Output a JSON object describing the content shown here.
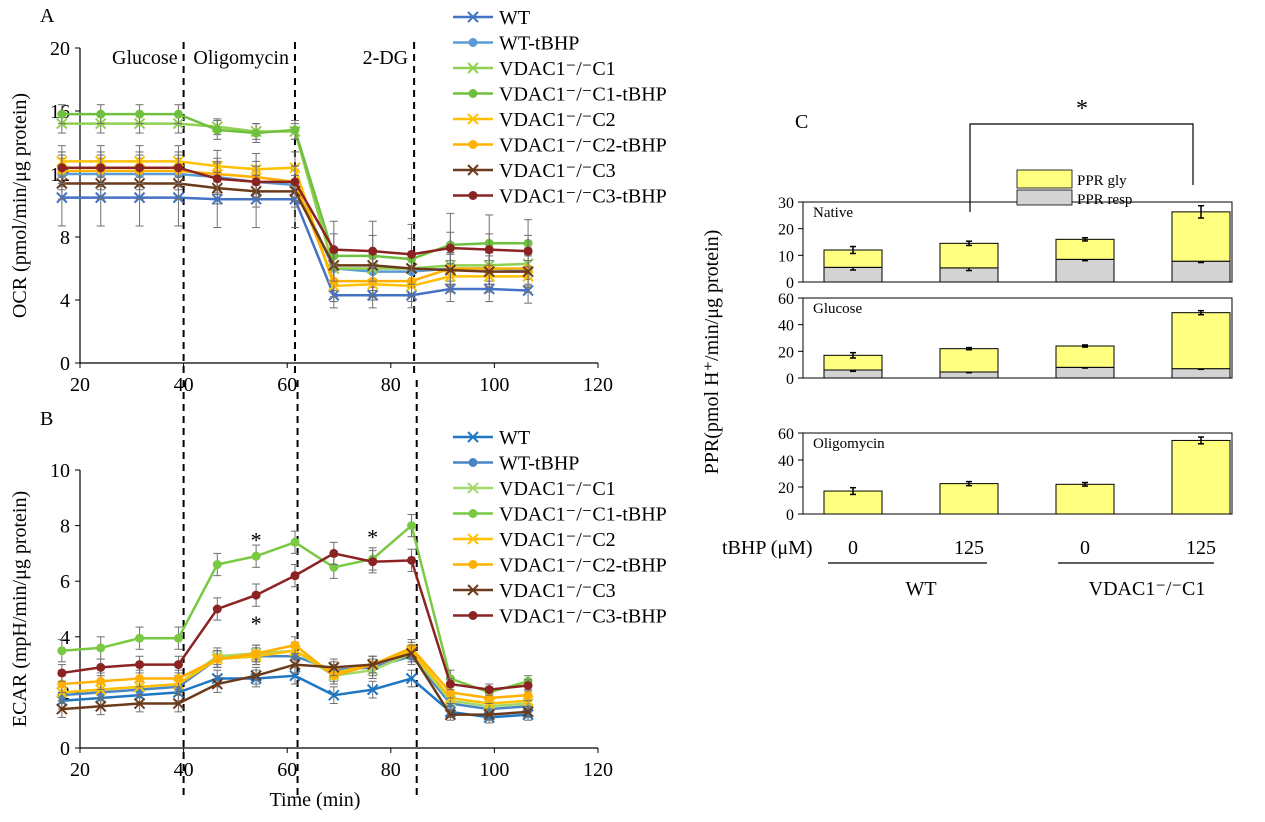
{
  "panel_letters": {
    "a": "A",
    "b": "B",
    "c": "C"
  },
  "line_panels": {
    "x_ticks": [
      "20",
      "40",
      "60",
      "80",
      "100",
      "120"
    ],
    "xlabel": "Time (min)",
    "markers": [
      "Glucose",
      "Oligomycin",
      "2-DG"
    ]
  },
  "bar_panel": {
    "ylabel": "PPR(pmol H⁺/min/μg protein)",
    "row_label": "tBHP (μM)",
    "x_labels": [
      "0",
      "125",
      "0",
      "125"
    ],
    "groups": [
      "WT",
      "VDAC1⁻/⁻C1"
    ],
    "legend": [
      "PPR gly",
      "PPR resp"
    ],
    "significance": "*"
  },
  "chart_data": [
    {
      "type": "line",
      "panel": "A",
      "title": "",
      "xlabel": "",
      "ylabel": "OCR (pmol/min/μg protein)",
      "xlim": [
        20,
        120
      ],
      "ylim": [
        0,
        20
      ],
      "yticks": [
        0,
        4,
        8,
        12,
        16,
        20
      ],
      "x": [
        16.5,
        24,
        31.5,
        39,
        46.5,
        54,
        61.5,
        69,
        76.5,
        84,
        91.5,
        99,
        106.5
      ],
      "vlines": [
        {
          "x": 40,
          "label": "Glucose"
        },
        {
          "x": 61.5,
          "label": "Oligomycin"
        },
        {
          "x": 84.5,
          "label": "2-DG"
        }
      ],
      "series": [
        {
          "name": "WT",
          "color": "#4472c4",
          "marker": "x",
          "values": [
            10.5,
            10.5,
            10.5,
            10.5,
            10.4,
            10.4,
            10.4,
            4.3,
            4.3,
            4.3,
            4.7,
            4.7,
            4.6
          ],
          "err": [
            1.8,
            1.8,
            1.8,
            1.8,
            1.8,
            1.8,
            1.8,
            0.8,
            0.8,
            0.8,
            0.8,
            0.8,
            0.8
          ]
        },
        {
          "name": "WT-tBHP",
          "color": "#5b9bd5",
          "marker": "o",
          "values": [
            12.0,
            12.0,
            12.0,
            12.0,
            11.8,
            11.5,
            11.3,
            6.0,
            5.8,
            5.8,
            6.0,
            6.0,
            5.9
          ],
          "err": [
            1.0,
            1.0,
            1.0,
            1.0,
            1.0,
            1.0,
            1.0,
            1.0,
            1.0,
            1.0,
            1.0,
            1.0,
            1.0
          ]
        },
        {
          "name": "VDAC1⁻/⁻C1",
          "color": "#8fd14f",
          "marker": "x",
          "values": [
            15.2,
            15.2,
            15.2,
            15.2,
            15.0,
            14.7,
            14.7,
            6.0,
            6.0,
            6.0,
            6.2,
            6.2,
            6.3
          ],
          "err": [
            0.6,
            0.6,
            0.6,
            0.6,
            0.5,
            0.5,
            0.5,
            1.0,
            1.0,
            1.0,
            1.0,
            1.0,
            1.0
          ]
        },
        {
          "name": "VDAC1⁻/⁻C1-tBHP",
          "color": "#70c040",
          "marker": "o",
          "values": [
            15.8,
            15.8,
            15.8,
            15.8,
            14.8,
            14.6,
            14.8,
            6.8,
            6.8,
            6.6,
            7.5,
            7.6,
            7.6
          ],
          "err": [
            0.6,
            0.6,
            0.6,
            0.6,
            0.6,
            0.6,
            0.6,
            2.2,
            2.2,
            2.2,
            2.0,
            1.8,
            1.5
          ]
        },
        {
          "name": "VDAC1⁻/⁻C2",
          "color": "#ffc000",
          "marker": "x",
          "values": [
            12.8,
            12.8,
            12.8,
            12.8,
            12.5,
            12.3,
            12.4,
            4.9,
            5.0,
            4.9,
            5.5,
            5.5,
            5.5
          ],
          "err": [
            1.0,
            1.0,
            1.0,
            1.0,
            1.0,
            1.0,
            1.0,
            1.0,
            1.0,
            1.0,
            1.0,
            1.0,
            1.0
          ]
        },
        {
          "name": "VDAC1⁻/⁻C2-tBHP",
          "color": "#ffb000",
          "marker": "o",
          "values": [
            12.2,
            12.2,
            12.2,
            12.2,
            12.0,
            11.8,
            11.5,
            5.2,
            5.2,
            5.2,
            6.0,
            6.0,
            6.0
          ],
          "err": [
            1.0,
            1.0,
            1.0,
            1.0,
            1.0,
            1.0,
            1.0,
            1.0,
            1.0,
            1.0,
            1.0,
            1.0,
            1.0
          ]
        },
        {
          "name": "VDAC1⁻/⁻C3",
          "color": "#6b3a1a",
          "marker": "x",
          "values": [
            11.4,
            11.4,
            11.4,
            11.4,
            11.1,
            10.9,
            10.9,
            6.2,
            6.2,
            6.0,
            5.9,
            5.8,
            5.8
          ],
          "err": [
            1.0,
            1.0,
            1.0,
            1.0,
            1.0,
            1.0,
            1.0,
            1.0,
            1.0,
            1.0,
            1.0,
            1.0,
            1.0
          ]
        },
        {
          "name": "VDAC1⁻/⁻C3-tBHP",
          "color": "#8b2323",
          "marker": "o",
          "values": [
            12.4,
            12.4,
            12.4,
            12.4,
            11.7,
            11.5,
            11.5,
            7.2,
            7.1,
            6.9,
            7.3,
            7.2,
            7.1
          ],
          "err": [
            1.0,
            1.0,
            1.0,
            1.0,
            1.0,
            1.0,
            1.0,
            1.0,
            1.0,
            1.0,
            1.0,
            1.0,
            1.0
          ]
        }
      ]
    },
    {
      "type": "line",
      "panel": "B",
      "title": "",
      "xlabel": "Time (min)",
      "ylabel": "ECAR (mpH/min/μg protein)",
      "xlim": [
        20,
        120
      ],
      "ylim": [
        0,
        10
      ],
      "yticks": [
        0,
        2,
        4,
        6,
        8,
        10
      ],
      "x": [
        16.5,
        24,
        31.5,
        39,
        46.5,
        54,
        61.5,
        69,
        76.5,
        84,
        91.5,
        99,
        106.5
      ],
      "vlines": [
        {
          "x": 40
        },
        {
          "x": 62
        },
        {
          "x": 85
        }
      ],
      "annotations": [
        {
          "text": "*",
          "x": 54,
          "y": 7.5
        },
        {
          "text": "*",
          "x": 54,
          "y": 4.5
        },
        {
          "text": "*",
          "x": 76.5,
          "y": 7.6
        }
      ],
      "series": [
        {
          "name": "WT",
          "color": "#1f77c4",
          "marker": "x",
          "values": [
            1.7,
            1.8,
            1.9,
            2.0,
            2.5,
            2.5,
            2.6,
            1.9,
            2.1,
            2.5,
            1.3,
            1.1,
            1.2
          ],
          "err": [
            0.3,
            0.3,
            0.3,
            0.3,
            0.3,
            0.3,
            0.3,
            0.3,
            0.3,
            0.3,
            0.2,
            0.2,
            0.2
          ]
        },
        {
          "name": "WT-tBHP",
          "color": "#4a86c6",
          "marker": "o",
          "values": [
            1.9,
            2.0,
            2.1,
            2.2,
            3.2,
            3.3,
            3.3,
            2.8,
            2.9,
            3.3,
            1.6,
            1.4,
            1.5
          ],
          "err": [
            0.3,
            0.3,
            0.3,
            0.3,
            0.3,
            0.3,
            0.3,
            0.3,
            0.3,
            0.3,
            0.2,
            0.2,
            0.2
          ]
        },
        {
          "name": "VDAC1⁻/⁻C1",
          "color": "#a3d86a",
          "marker": "x",
          "values": [
            2.0,
            2.1,
            2.2,
            2.3,
            3.3,
            3.4,
            3.5,
            2.6,
            2.8,
            3.4,
            1.7,
            1.5,
            1.6
          ],
          "err": [
            0.3,
            0.3,
            0.3,
            0.3,
            0.3,
            0.3,
            0.3,
            0.3,
            0.3,
            0.3,
            0.2,
            0.2,
            0.2
          ]
        },
        {
          "name": "VDAC1⁻/⁻C1-tBHP",
          "color": "#7ac943",
          "marker": "o",
          "values": [
            3.5,
            3.6,
            3.95,
            3.95,
            6.6,
            6.9,
            7.4,
            6.5,
            6.8,
            8.0,
            2.5,
            2.0,
            2.4
          ],
          "err": [
            0.4,
            0.4,
            0.4,
            0.4,
            0.4,
            0.4,
            0.4,
            0.4,
            0.4,
            0.4,
            0.3,
            0.2,
            0.2
          ]
        },
        {
          "name": "VDAC1⁻/⁻C2",
          "color": "#ffc000",
          "marker": "x",
          "values": [
            2.0,
            2.1,
            2.2,
            2.3,
            3.2,
            3.3,
            3.5,
            2.7,
            3.0,
            3.5,
            1.8,
            1.6,
            1.7
          ],
          "err": [
            0.3,
            0.3,
            0.3,
            0.3,
            0.3,
            0.3,
            0.3,
            0.3,
            0.3,
            0.3,
            0.2,
            0.2,
            0.2
          ]
        },
        {
          "name": "VDAC1⁻/⁻C2-tBHP",
          "color": "#ffb000",
          "marker": "o",
          "values": [
            2.3,
            2.4,
            2.5,
            2.5,
            3.2,
            3.4,
            3.7,
            2.6,
            3.0,
            3.6,
            2.0,
            1.8,
            1.9
          ],
          "err": [
            0.3,
            0.3,
            0.3,
            0.3,
            0.3,
            0.3,
            0.3,
            0.3,
            0.3,
            0.3,
            0.2,
            0.2,
            0.2
          ]
        },
        {
          "name": "VDAC1⁻/⁻C3",
          "color": "#6b3a1a",
          "marker": "x",
          "values": [
            1.4,
            1.5,
            1.6,
            1.6,
            2.3,
            2.6,
            3.0,
            2.9,
            3.0,
            3.4,
            1.2,
            1.2,
            1.3
          ],
          "err": [
            0.3,
            0.3,
            0.3,
            0.3,
            0.3,
            0.3,
            0.3,
            0.3,
            0.3,
            0.3,
            0.2,
            0.2,
            0.2
          ]
        },
        {
          "name": "VDAC1⁻/⁻C3-tBHP",
          "color": "#8b2323",
          "marker": "o",
          "values": [
            2.7,
            2.9,
            3.0,
            3.0,
            5.0,
            5.5,
            6.2,
            7.0,
            6.7,
            6.75,
            2.3,
            2.1,
            2.25
          ],
          "err": [
            0.3,
            0.3,
            0.3,
            0.3,
            0.4,
            0.4,
            0.4,
            0.4,
            0.4,
            0.4,
            0.2,
            0.2,
            0.2
          ]
        }
      ]
    },
    {
      "type": "bar",
      "panel": "C",
      "stacked": true,
      "categories": [
        "0",
        "125",
        "0",
        "125"
      ],
      "groups": [
        "WT",
        "VDAC1⁻/⁻C1"
      ],
      "ylabel": "PPR(pmol H⁺/min/μg protein)",
      "subpanels": [
        {
          "label": "Native",
          "ylim": [
            0,
            30
          ],
          "yticks": [
            0,
            10,
            20,
            30
          ],
          "series": [
            {
              "name": "PPR resp",
              "color": "#d3d3d3",
              "values": [
                5.5,
                5.3,
                8.5,
                7.8
              ],
              "err": [
                1.0,
                1.0,
                0.5,
                0.5
              ]
            },
            {
              "name": "PPR gly",
              "color": "#ffff80",
              "values": [
                6.5,
                9.2,
                7.5,
                18.5
              ],
              "err": [
                1.3,
                0.8,
                0.6,
                2.3
              ]
            }
          ]
        },
        {
          "label": "Glucose",
          "ylim": [
            0,
            60
          ],
          "yticks": [
            0,
            20,
            40,
            60
          ],
          "series": [
            {
              "name": "PPR resp",
              "color": "#d3d3d3",
              "values": [
                6.0,
                4.5,
                8.0,
                7.0
              ],
              "err": [
                1.0,
                0.5,
                0.5,
                0.5
              ]
            },
            {
              "name": "PPR gly",
              "color": "#ffff80",
              "values": [
                11.0,
                17.5,
                16.0,
                42.0
              ],
              "err": [
                2.0,
                0.8,
                0.8,
                1.5
              ]
            }
          ]
        },
        {
          "label": "Oligomycin",
          "ylim": [
            0,
            60
          ],
          "yticks": [
            0,
            20,
            40,
            60
          ],
          "series": [
            {
              "name": "PPR resp",
              "color": "#d3d3d3",
              "values": [
                0,
                0,
                0,
                0
              ],
              "err": [
                0,
                0,
                0,
                0
              ]
            },
            {
              "name": "PPR gly",
              "color": "#ffff80",
              "values": [
                17.0,
                22.5,
                22.0,
                54.5
              ],
              "err": [
                2.5,
                1.5,
                1.3,
                2.5
              ]
            }
          ]
        }
      ]
    }
  ]
}
